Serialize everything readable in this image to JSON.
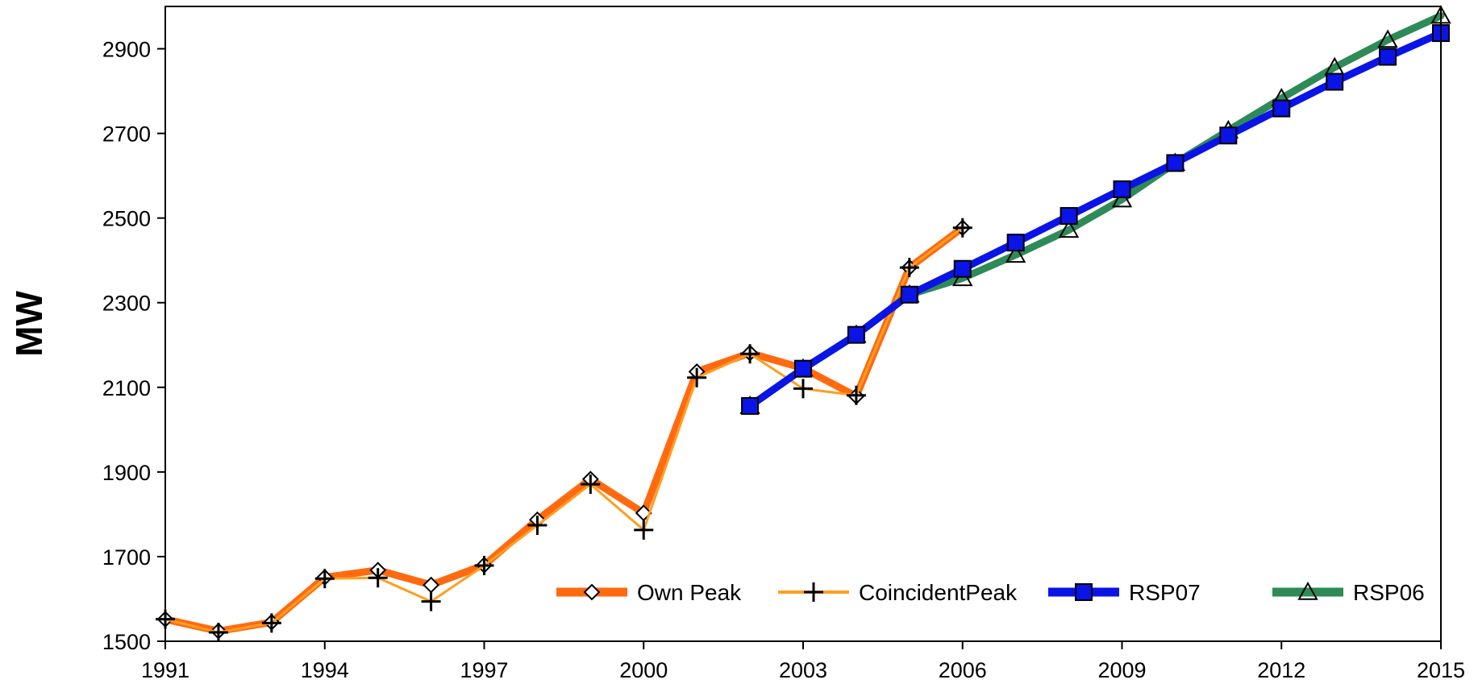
{
  "chart_data": {
    "type": "line",
    "title": "",
    "xlabel": "",
    "ylabel": "MW",
    "xlim": [
      1991,
      2015
    ],
    "ylim": [
      1500,
      3000
    ],
    "x_ticks": [
      1991,
      1994,
      1997,
      2000,
      2003,
      2006,
      2009,
      2012,
      2015
    ],
    "y_ticks": [
      1500,
      1700,
      1900,
      2100,
      2300,
      2500,
      2700,
      2900
    ],
    "grid": false,
    "legend_position": "bottom-right",
    "series": [
      {
        "name": "Own Peak",
        "color": "#ff6a10",
        "marker": "diamond",
        "line_weight": "thick",
        "x": [
          1991,
          1992,
          1993,
          1994,
          1995,
          1996,
          1997,
          1998,
          1999,
          2000,
          2001,
          2002,
          2003,
          2004,
          2005,
          2006
        ],
        "y": [
          1552,
          1524,
          1545,
          1651,
          1668,
          1633,
          1680,
          1787,
          1883,
          1803,
          2137,
          2181,
          2145,
          2079,
          2383,
          2477
        ]
      },
      {
        "name": "CoincidentPeak",
        "color": "#ff9e20",
        "marker": "plus",
        "line_weight": "thin",
        "x": [
          1991,
          1992,
          1993,
          1994,
          1995,
          1996,
          1997,
          1998,
          1999,
          2000,
          2001,
          2002,
          2003,
          2004,
          2005,
          2006
        ],
        "y": [
          1552,
          1521,
          1543,
          1648,
          1650,
          1594,
          1679,
          1774,
          1871,
          1763,
          2123,
          2179,
          2097,
          2081,
          2383,
          2477
        ]
      },
      {
        "name": "RSP07",
        "color": "#0a14e6",
        "marker": "square",
        "line_weight": "thick",
        "x": [
          2002,
          2003,
          2004,
          2005,
          2006,
          2007,
          2008,
          2009,
          2010,
          2011,
          2012,
          2013,
          2014,
          2015
        ],
        "y": [
          2056,
          2144,
          2224,
          2319,
          2380,
          2442,
          2505,
          2568,
          2630,
          2695,
          2759,
          2822,
          2881,
          2937
        ]
      },
      {
        "name": "RSP06",
        "color": "#2e8b57",
        "marker": "triangle",
        "line_weight": "thick",
        "x": [
          2002,
          2003,
          2004,
          2005,
          2006,
          2007,
          2008,
          2009,
          2010,
          2011,
          2012,
          2013,
          2014,
          2015
        ],
        "y": [
          2056,
          2144,
          2224,
          2319,
          2358,
          2413,
          2472,
          2544,
          2630,
          2707,
          2783,
          2856,
          2921,
          2978
        ]
      }
    ]
  }
}
